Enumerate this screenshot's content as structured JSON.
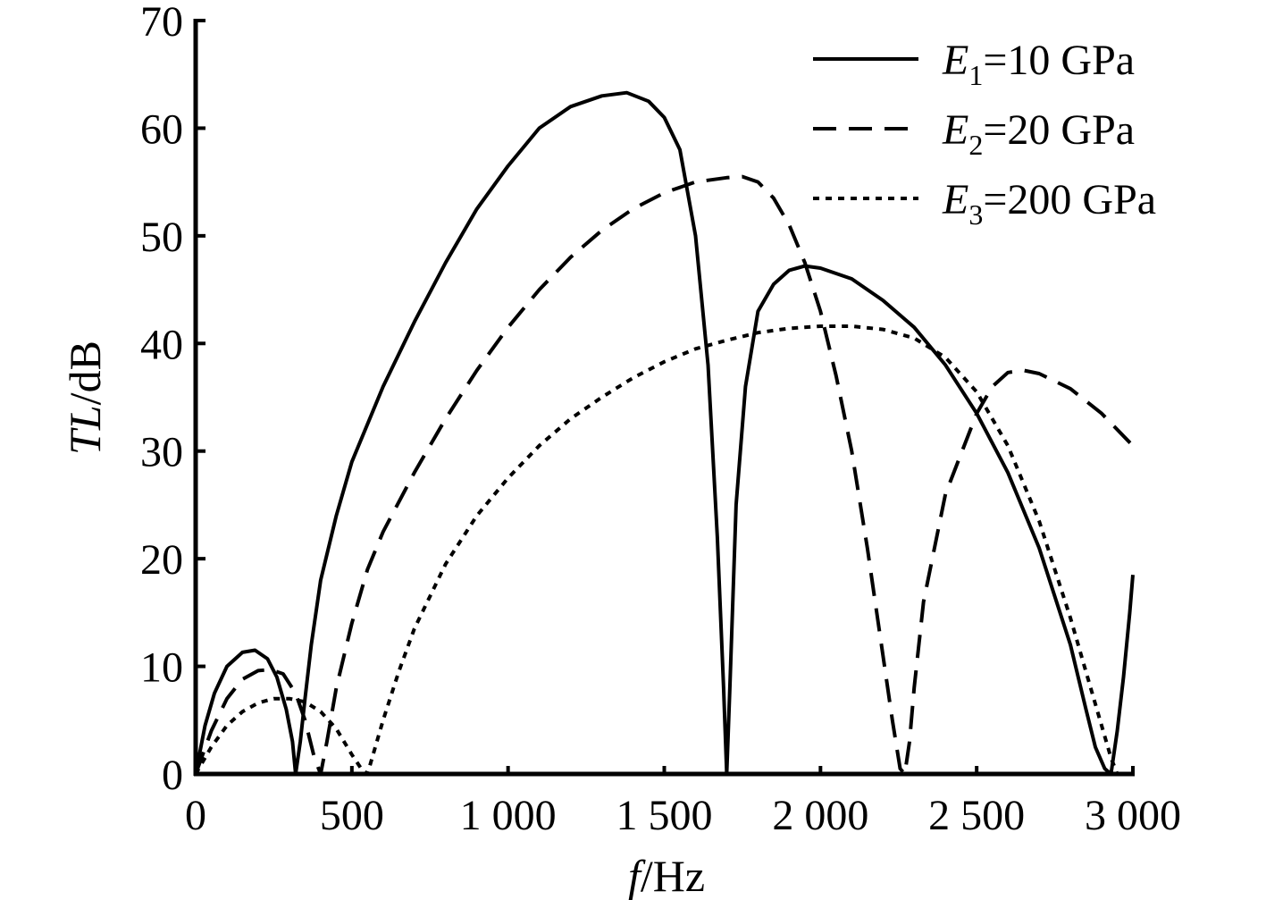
{
  "chart_data": {
    "type": "line",
    "title": "",
    "xlabel": {
      "var": "f",
      "unit": "/Hz"
    },
    "ylabel": {
      "var": "TL",
      "unit": "/dB"
    },
    "xlim": [
      0,
      3000
    ],
    "ylim": [
      0,
      70
    ],
    "xticks": [
      0,
      500,
      1000,
      1500,
      2000,
      2500,
      3000
    ],
    "xtick_labels": [
      "0",
      "500",
      "1 000",
      "1 500",
      "2 000",
      "2 500",
      "3 000"
    ],
    "yticks": [
      0,
      10,
      20,
      30,
      40,
      50,
      60,
      70
    ],
    "ytick_labels": [
      "0",
      "10",
      "20",
      "30",
      "40",
      "50",
      "60",
      "70"
    ],
    "grid": false,
    "legend_position": "top-right",
    "series": [
      {
        "name": "E1=10 GPa",
        "legend": {
          "sym": "E",
          "sub": "1",
          "rest": "=10 GPa"
        },
        "style": "solid",
        "x": [
          0,
          30,
          60,
          100,
          150,
          190,
          230,
          260,
          290,
          310,
          320,
          335,
          350,
          370,
          400,
          450,
          500,
          600,
          700,
          800,
          900,
          1000,
          1100,
          1200,
          1300,
          1380,
          1450,
          1500,
          1550,
          1600,
          1640,
          1670,
          1690,
          1700,
          1710,
          1730,
          1760,
          1800,
          1850,
          1900,
          1950,
          2000,
          2100,
          2200,
          2300,
          2400,
          2500,
          2600,
          2700,
          2800,
          2850,
          2880,
          2910,
          2930,
          2950,
          2970,
          2990,
          3000
        ],
        "y": [
          0,
          4.5,
          7.5,
          10,
          11.3,
          11.5,
          10.7,
          9,
          6,
          3,
          0,
          3,
          7,
          12,
          18,
          24,
          29,
          36,
          42,
          47.5,
          52.5,
          56.5,
          60,
          62,
          63,
          63.3,
          62.5,
          61,
          58,
          50,
          38,
          22,
          8,
          0,
          8,
          25,
          36,
          43,
          45.5,
          46.8,
          47.2,
          47,
          46,
          44,
          41.5,
          38,
          33.5,
          28,
          21,
          12,
          6,
          2.5,
          0.5,
          0,
          4,
          9,
          15,
          18.5
        ]
      },
      {
        "name": "E2=20 GPa",
        "legend": {
          "sym": "E",
          "sub": "2",
          "rest": "=20 GPa"
        },
        "style": "dashed",
        "x": [
          0,
          50,
          100,
          150,
          200,
          240,
          280,
          320,
          350,
          380,
          400,
          420,
          450,
          500,
          550,
          600,
          700,
          800,
          900,
          1000,
          1100,
          1200,
          1300,
          1400,
          1500,
          1600,
          1700,
          1750,
          1800,
          1850,
          1900,
          1950,
          2000,
          2050,
          2100,
          2150,
          2200,
          2230,
          2255,
          2270,
          2285,
          2300,
          2330,
          2400,
          2500,
          2550,
          2600,
          2650,
          2700,
          2800,
          2900,
          3000
        ],
        "y": [
          0,
          4,
          7,
          8.8,
          9.6,
          9.7,
          9.3,
          7.5,
          5,
          1.5,
          0,
          3,
          8,
          14,
          19,
          22.5,
          28,
          33,
          37.5,
          41.5,
          45,
          48,
          50.5,
          52.5,
          54,
          55,
          55.4,
          55.5,
          55,
          53.5,
          51,
          47.5,
          43,
          37,
          30,
          21,
          11,
          5,
          0.5,
          0,
          3,
          8,
          16,
          26,
          33.5,
          36,
          37.3,
          37.5,
          37.2,
          35.8,
          33.5,
          30.5
        ]
      },
      {
        "name": "E3=200 GPa",
        "legend": {
          "sym": "E",
          "sub": "3",
          "rest": "=200 GPa"
        },
        "style": "dotted",
        "x": [
          0,
          50,
          100,
          150,
          200,
          250,
          300,
          350,
          400,
          450,
          500,
          530,
          550,
          570,
          600,
          650,
          700,
          800,
          900,
          1000,
          1100,
          1200,
          1300,
          1400,
          1500,
          1600,
          1700,
          1800,
          1900,
          2000,
          2100,
          2200,
          2300,
          2400,
          2500,
          2600,
          2700,
          2800,
          2850,
          2900,
          2930,
          2950
        ],
        "y": [
          0,
          2.5,
          4.5,
          5.8,
          6.6,
          7,
          7,
          6.7,
          5.8,
          4.2,
          1.8,
          0.5,
          0,
          2,
          5,
          9.5,
          13.5,
          19.5,
          24,
          27.5,
          30.5,
          33,
          35,
          36.8,
          38.3,
          39.5,
          40.3,
          41,
          41.4,
          41.6,
          41.6,
          41.3,
          40.5,
          38.7,
          35.5,
          30.5,
          23.5,
          14.5,
          9.5,
          4.5,
          1.5,
          0
        ]
      }
    ]
  }
}
